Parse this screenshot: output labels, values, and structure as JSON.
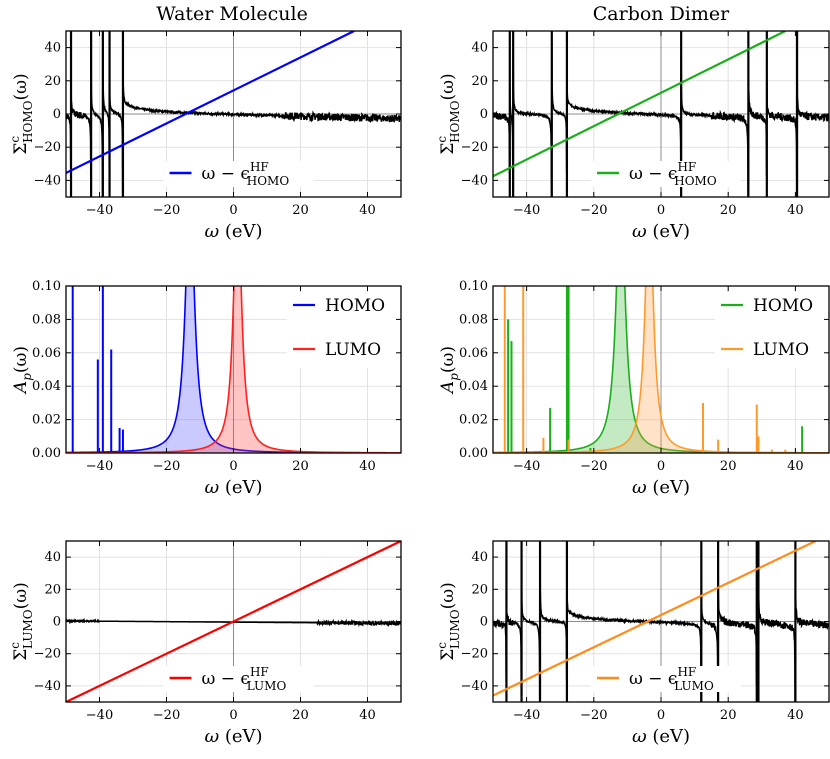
{
  "column_titles": [
    "Water Molecule",
    "Carbon Dimer"
  ],
  "x_axis_label": "ω (eV)",
  "chart_data": [
    {
      "id": "water-homo-self-energy",
      "type": "line",
      "column": "Water Molecule",
      "ylabel": "Σ^c_HOMO(ω)",
      "xlabel": "ω (eV)",
      "xlim": [
        -50,
        50
      ],
      "ylim": [
        -50,
        50
      ],
      "xticks": [
        -40,
        -20,
        0,
        20,
        40
      ],
      "yticks": [
        -40,
        -20,
        0,
        20,
        40
      ],
      "grid": true,
      "legend_position": "bottom-center",
      "poles": [
        -48.5,
        -42.5,
        -39.0,
        -37.0,
        -33.0
      ],
      "series": [
        {
          "name": "",
          "color": "#000000",
          "kind": "self-energy",
          "shape": "decaying tail, negative slope",
          "poles": [
            -48.5,
            -42.5,
            -39.0,
            -37.0,
            -33.0
          ]
        },
        {
          "name": "ω − ϵ^HF_HOMO",
          "color": "#0000ff",
          "kind": "line",
          "x": [
            -50,
            36
          ],
          "y": [
            -35.5,
            50
          ]
        }
      ]
    },
    {
      "id": "carbon-homo-self-energy",
      "type": "line",
      "column": "Carbon Dimer",
      "ylabel": "Σ^c_HOMO(ω)",
      "xlabel": "ω (eV)",
      "xlim": [
        -50,
        50
      ],
      "ylim": [
        -50,
        50
      ],
      "xticks": [
        -40,
        -20,
        0,
        20,
        40
      ],
      "yticks": [
        -40,
        -20,
        0,
        20,
        40
      ],
      "grid": true,
      "legend_position": "bottom-center",
      "series": [
        {
          "name": "",
          "color": "#000000",
          "kind": "self-energy",
          "shape": "decaying tail, negative slope",
          "poles": [
            -45.0,
            -44.0,
            -32.5,
            -28.0,
            6.0,
            26.0,
            31.5,
            40.5
          ]
        },
        {
          "name": "ω − ϵ^HF_HOMO",
          "color": "#1aaf1a",
          "kind": "line",
          "x": [
            -50,
            37
          ],
          "y": [
            -37.5,
            50
          ]
        }
      ]
    },
    {
      "id": "water-spectral-function",
      "type": "area",
      "column": "Water Molecule",
      "ylabel": "A_p(ω)",
      "xlabel": "ω (eV)",
      "xlim": [
        -50,
        50
      ],
      "ylim": [
        0,
        0.1
      ],
      "xticks": [
        -40,
        -20,
        0,
        20,
        40
      ],
      "yticks": [
        0.0,
        0.02,
        0.04,
        0.06,
        0.08,
        0.1
      ],
      "ytick_labels": [
        "0.00",
        "0.02",
        "0.04",
        "0.06",
        "0.08",
        "0.10"
      ],
      "grid": true,
      "legend_position": "top-right",
      "series": [
        {
          "name": "HOMO",
          "color": "#0000ff",
          "fill": "rgba(80,80,255,0.30)",
          "lorentzian_center": -13.0,
          "lorentzian_width": 1.6,
          "spikes": [
            [
              -48.0,
              0.1
            ],
            [
              -40.5,
              0.056
            ],
            [
              -39.0,
              0.1
            ],
            [
              -36.5,
              0.062
            ],
            [
              -34.0,
              0.015
            ],
            [
              -33.0,
              0.014
            ]
          ]
        },
        {
          "name": "LUMO",
          "color": "#ff2020",
          "fill": "rgba(255,60,60,0.30)",
          "lorentzian_center": 1.2,
          "lorentzian_width": 1.4,
          "spikes": []
        }
      ]
    },
    {
      "id": "carbon-spectral-function",
      "type": "area",
      "column": "Carbon Dimer",
      "ylabel": "A_p(ω)",
      "xlabel": "ω (eV)",
      "xlim": [
        -50,
        50
      ],
      "ylim": [
        0,
        0.1
      ],
      "xticks": [
        -40,
        -20,
        0,
        20,
        40
      ],
      "yticks": [
        0.0,
        0.02,
        0.04,
        0.06,
        0.08,
        0.1
      ],
      "ytick_labels": [
        "0.00",
        "0.02",
        "0.04",
        "0.06",
        "0.08",
        "0.10"
      ],
      "grid": true,
      "legend_position": "top-right",
      "series": [
        {
          "name": "HOMO",
          "color": "#1aaf1a",
          "fill": "rgba(40,180,40,0.28)",
          "lorentzian_center": -12.0,
          "lorentzian_width": 1.6,
          "spikes": [
            [
              -45.5,
              0.08
            ],
            [
              -44.5,
              0.067
            ],
            [
              -33.0,
              0.027
            ],
            [
              -28.0,
              0.1
            ],
            [
              -27.5,
              0.1
            ],
            [
              -21.0,
              0.003
            ],
            [
              42.0,
              0.016
            ]
          ]
        },
        {
          "name": "LUMO",
          "color": "#ff9a2a",
          "fill": "rgba(255,160,70,0.30)",
          "lorentzian_center": -3.5,
          "lorentzian_width": 1.4,
          "spikes": [
            [
              -46.5,
              0.1
            ],
            [
              -41.0,
              0.1
            ],
            [
              -35.0,
              0.009
            ],
            [
              -27.5,
              0.008
            ],
            [
              12.5,
              0.03
            ],
            [
              17.0,
              0.008
            ],
            [
              28.5,
              0.029
            ],
            [
              29.0,
              0.01
            ],
            [
              33.0,
              0.002
            ],
            [
              37.0,
              0.002
            ]
          ]
        }
      ]
    },
    {
      "id": "water-lumo-self-energy",
      "type": "line",
      "column": "Water Molecule",
      "ylabel": "Σ^c_LUMO(ω)",
      "xlabel": "ω (eV)",
      "xlim": [
        -50,
        50
      ],
      "ylim": [
        -50,
        50
      ],
      "xticks": [
        -40,
        -20,
        0,
        20,
        40
      ],
      "yticks": [
        -40,
        -20,
        0,
        20,
        40
      ],
      "grid": true,
      "legend_position": "bottom-center",
      "series": [
        {
          "name": "",
          "color": "#000000",
          "kind": "self-energy",
          "shape": "nearly flat near zero",
          "poles": []
        },
        {
          "name": "ω − ϵ^HF_LUMO",
          "color": "#ff0000",
          "kind": "line",
          "x": [
            -50,
            50
          ],
          "y": [
            -50,
            50
          ]
        }
      ]
    },
    {
      "id": "carbon-lumo-self-energy",
      "type": "line",
      "column": "Carbon Dimer",
      "ylabel": "Σ^c_LUMO(ω)",
      "xlabel": "ω (eV)",
      "xlim": [
        -50,
        50
      ],
      "ylim": [
        -50,
        50
      ],
      "xticks": [
        -40,
        -20,
        0,
        20,
        40
      ],
      "yticks": [
        -40,
        -20,
        0,
        20,
        40
      ],
      "grid": true,
      "legend_position": "bottom-center",
      "series": [
        {
          "name": "",
          "color": "#000000",
          "kind": "self-energy",
          "shape": "decaying tail, negative slope",
          "poles": [
            -46.0,
            -41.5,
            -36.0,
            -28.0,
            12.0,
            17.0,
            28.5,
            29.0,
            40.0
          ]
        },
        {
          "name": "ω − ϵ^HF_LUMO",
          "color": "#ff8c1a",
          "kind": "line",
          "x": [
            -50,
            46
          ],
          "y": [
            -46.0,
            50
          ]
        }
      ]
    }
  ]
}
